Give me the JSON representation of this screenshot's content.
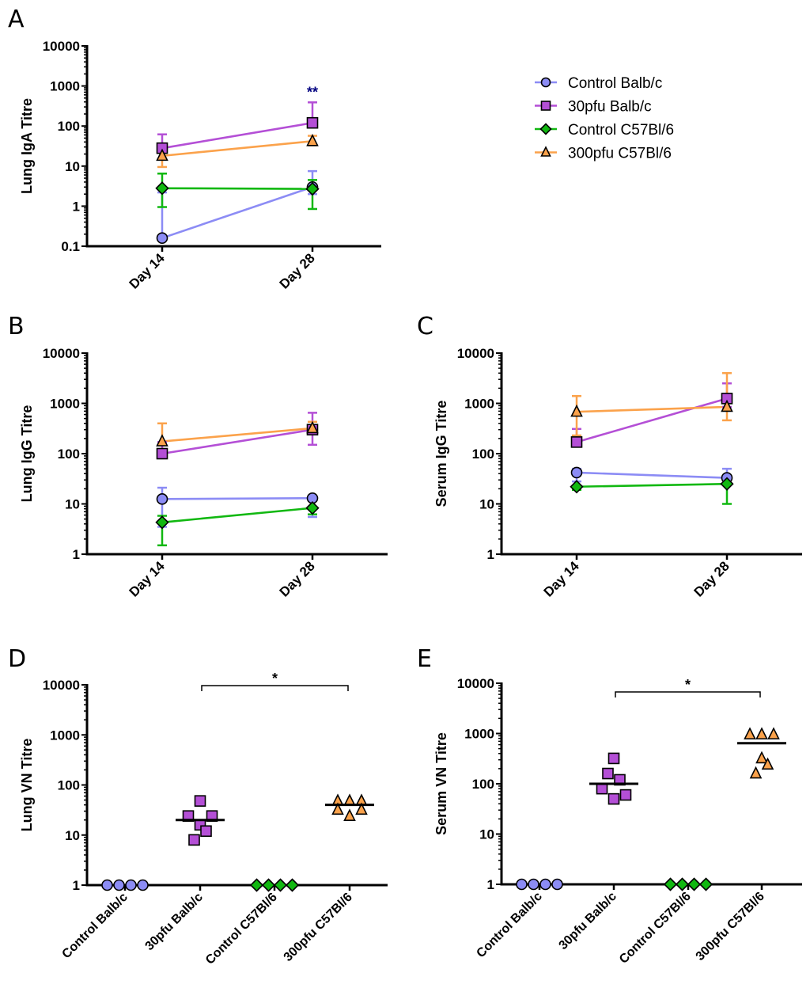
{
  "groups": [
    {
      "key": "ctrl_balb",
      "name": "Control Balb/c",
      "color": "#8c8cf5",
      "marker": "circle"
    },
    {
      "key": "pfu30_balb",
      "name": "30pfu Balb/c",
      "color": "#b44fd6",
      "marker": "square"
    },
    {
      "key": "ctrl_c57",
      "name": "Control C57Bl/6",
      "color": "#11b811",
      "marker": "diamond"
    },
    {
      "key": "pfu300_c57",
      "name": "300pfu C57Bl/6",
      "color": "#fba24b",
      "marker": "triangle"
    }
  ],
  "legend": {
    "items": [
      "Control Balb/c",
      "30pfu Balb/c",
      "Control C57Bl/6",
      "300pfu C57Bl/6"
    ],
    "placement": "right of panel A"
  },
  "chart_data": [
    {
      "panel": "A",
      "type": "line",
      "ylabel": "Lung IgA Titre",
      "yscale": "log",
      "ylim": [
        0.1,
        10000
      ],
      "yticks": [
        "10000",
        "1000",
        "100",
        "10",
        "1",
        "0.1"
      ],
      "categories": [
        "Day 14",
        "Day 28"
      ],
      "series": [
        {
          "name": "Control Balb/c",
          "values": [
            0.16,
            3.0
          ],
          "err_low": [
            0.16,
            2.0
          ],
          "err_high": [
            2.2,
            7.5
          ]
        },
        {
          "name": "30pfu Balb/c",
          "values": [
            28,
            120
          ],
          "err_low": [
            28,
            95
          ],
          "err_high": [
            62,
            390
          ]
        },
        {
          "name": "Control C57Bl/6",
          "values": [
            2.8,
            2.7
          ],
          "err_low": [
            0.95,
            0.85
          ],
          "err_high": [
            6.5,
            4.5
          ]
        },
        {
          "name": "300pfu C57Bl/6",
          "values": [
            18,
            42
          ],
          "err_low": [
            9.5,
            33
          ],
          "err_high": [
            18,
            57
          ]
        }
      ],
      "annotations": [
        {
          "text": "**",
          "category": "Day 28",
          "color": "#000080"
        }
      ]
    },
    {
      "panel": "B",
      "type": "line",
      "ylabel": "Lung IgG Titre",
      "yscale": "log",
      "ylim": [
        1,
        10000
      ],
      "yticks": [
        "10000",
        "1000",
        "100",
        "10",
        "1"
      ],
      "categories": [
        "Day 14",
        "Day 28"
      ],
      "series": [
        {
          "name": "Control Balb/c",
          "values": [
            12.5,
            13
          ],
          "err_low": [
            3.5,
            5.5
          ],
          "err_high": [
            21,
            13
          ]
        },
        {
          "name": "30pfu Balb/c",
          "values": [
            100,
            300
          ],
          "err_low": [
            100,
            150
          ],
          "err_high": [
            170,
            650
          ]
        },
        {
          "name": "Control C57Bl/6",
          "values": [
            4.3,
            8.3
          ],
          "err_low": [
            1.5,
            6.2
          ],
          "err_high": [
            5.8,
            8.3
          ]
        },
        {
          "name": "300pfu C57Bl/6",
          "values": [
            175,
            320
          ],
          "err_low": [
            175,
            320
          ],
          "err_high": [
            400,
            430
          ]
        }
      ],
      "annotations": []
    },
    {
      "panel": "C",
      "type": "line",
      "ylabel": "Serum IgG Titre",
      "yscale": "log",
      "ylim": [
        1,
        10000
      ],
      "yticks": [
        "10000",
        "1000",
        "100",
        "10",
        "1"
      ],
      "categories": [
        "Day 14",
        "Day 28"
      ],
      "series": [
        {
          "name": "Control Balb/c",
          "values": [
            42,
            33
          ],
          "err_low": [
            28,
            33
          ],
          "err_high": [
            50,
            50
          ]
        },
        {
          "name": "30pfu Balb/c",
          "values": [
            170,
            1250
          ],
          "err_low": [
            170,
            850
          ],
          "err_high": [
            310,
            2500
          ]
        },
        {
          "name": "Control C57Bl/6",
          "values": [
            22,
            25
          ],
          "err_low": [
            19,
            10
          ],
          "err_high": [
            22,
            25
          ]
        },
        {
          "name": "300pfu C57Bl/6",
          "values": [
            680,
            850
          ],
          "err_low": [
            230,
            460
          ],
          "err_high": [
            1400,
            4000
          ]
        }
      ],
      "annotations": []
    },
    {
      "panel": "D",
      "type": "scatter",
      "ylabel": "Lung VN Titre",
      "yscale": "log",
      "ylim": [
        1,
        10000
      ],
      "yticks": [
        "10000",
        "1000",
        "100",
        "10",
        "1"
      ],
      "categories": [
        "Control Balb/c",
        "30pfu Balb/c",
        "Control C57Bl/6",
        "300pfu C57Bl/6"
      ],
      "points": [
        {
          "group": "Control Balb/c",
          "values": [
            1,
            1,
            1,
            1
          ],
          "offsets": [
            -1.5,
            -0.5,
            0.5,
            1.5
          ],
          "median": null
        },
        {
          "group": "30pfu Balb/c",
          "values": [
            48,
            24,
            24,
            16,
            12,
            8
          ],
          "offsets": [
            0,
            -1,
            1,
            0,
            0.5,
            -0.5
          ],
          "median": 20
        },
        {
          "group": "Control C57Bl/6",
          "values": [
            1,
            1,
            1,
            1
          ],
          "offsets": [
            -1.5,
            -0.5,
            0.5,
            1.5
          ],
          "median": null
        },
        {
          "group": "300pfu C57Bl/6",
          "values": [
            48,
            48,
            48,
            32,
            32,
            24
          ],
          "offsets": [
            -1,
            0,
            1,
            -1,
            1,
            0
          ],
          "median": 40
        }
      ],
      "significance": {
        "from": "30pfu Balb/c",
        "to": "300pfu C57Bl/6",
        "label": "*"
      }
    },
    {
      "panel": "E",
      "type": "scatter",
      "ylabel": "Serum VN Titre",
      "yscale": "log",
      "ylim": [
        1,
        10000
      ],
      "yticks": [
        "10000",
        "1000",
        "100",
        "10",
        "1"
      ],
      "categories": [
        "Control Balb/c",
        "30pfu Balb/c",
        "Control C57Bl/6",
        "300pfu C57Bl/6"
      ],
      "points": [
        {
          "group": "Control Balb/c",
          "values": [
            1,
            1,
            1,
            1
          ],
          "offsets": [
            -1.5,
            -0.5,
            0.5,
            1.5
          ],
          "median": null
        },
        {
          "group": "30pfu Balb/c",
          "values": [
            320,
            160,
            120,
            80,
            60,
            50
          ],
          "offsets": [
            0,
            -0.5,
            0.5,
            -1,
            1,
            0
          ],
          "median": 100
        },
        {
          "group": "Control C57Bl/6",
          "values": [
            1,
            1,
            1,
            1
          ],
          "offsets": [
            -1.5,
            -0.5,
            0.5,
            1.5
          ],
          "median": null
        },
        {
          "group": "300pfu C57Bl/6",
          "values": [
            960,
            960,
            960,
            320,
            240,
            160
          ],
          "offsets": [
            -1,
            0,
            1,
            0,
            0.5,
            -0.5
          ],
          "median": 640
        }
      ],
      "significance": {
        "from": "30pfu Balb/c",
        "to": "300pfu C57Bl/6",
        "label": "*"
      }
    }
  ]
}
